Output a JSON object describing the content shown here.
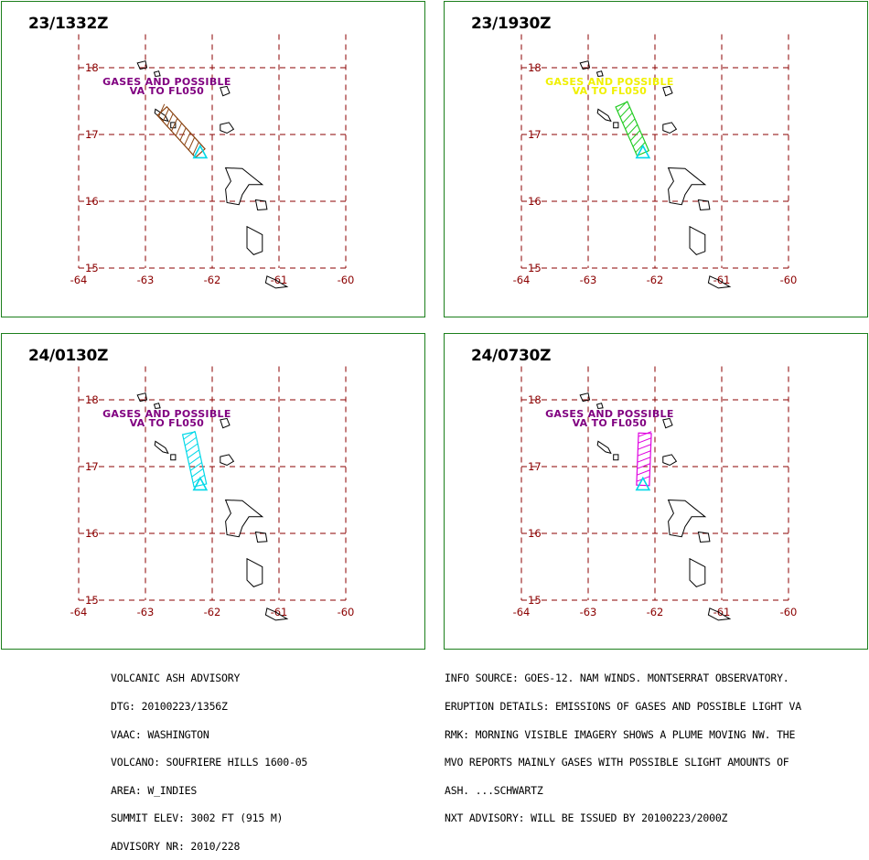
{
  "colors": {
    "grid": "#8b0000",
    "frame": "#1c7f1c",
    "coast": "#000000",
    "vent_marker": "#00d8e8"
  },
  "axes": {
    "lon_ticks": [
      "-64",
      "-63",
      "-62",
      "-61",
      "-60"
    ],
    "lat_ticks": [
      "18",
      "17",
      "16",
      "15"
    ],
    "lon_range": [
      -64,
      -60
    ],
    "lat_range": [
      15,
      18.5
    ]
  },
  "panels": [
    {
      "time": "23/1332Z",
      "annotation_line1": "GASES AND POSSIBLE",
      "annotation_line2": "VA TO FL050",
      "annotation_color": "#800080",
      "plume_color": "#8b4513",
      "plume_end": {
        "lon": -62.75,
        "lat": 17.35
      }
    },
    {
      "time": "23/1930Z",
      "annotation_line1": "GASES AND POSSIBLE",
      "annotation_line2": "VA TO FL050",
      "annotation_color": "#f0f000",
      "plume_color": "#22cc22",
      "plume_end": {
        "lon": -62.5,
        "lat": 17.45
      }
    },
    {
      "time": "24/0130Z",
      "annotation_line1": "GASES AND POSSIBLE",
      "annotation_line2": "VA TO FL050",
      "annotation_color": "#800080",
      "plume_color": "#00d8e8",
      "plume_end": {
        "lon": -62.35,
        "lat": 17.5
      }
    },
    {
      "time": "24/0730Z",
      "annotation_line1": "GASES AND POSSIBLE",
      "annotation_line2": "VA TO FL050",
      "annotation_color": "#800080",
      "plume_color": "#e000e0",
      "plume_end": {
        "lon": -62.15,
        "lat": 17.5
      }
    }
  ],
  "vent": {
    "lon": -62.18,
    "lat": 16.72
  },
  "advisory_left": [
    "VOLCANIC ASH ADVISORY",
    "DTG: 20100223/1356Z",
    "VAAC: WASHINGTON",
    "VOLCANO: SOUFRIERE HILLS 1600-05",
    "AREA: W_INDIES",
    "SUMMIT ELEV: 3002 FT (915 M)",
    "ADVISORY NR: 2010/228"
  ],
  "advisory_right": [
    "INFO SOURCE: GOES-12. NAM WINDS. MONTSERRAT OBSERVATORY.",
    "ERUPTION DETAILS: EMISSIONS OF GASES AND POSSIBLE LIGHT VA",
    "RMK: MORNING VISIBLE IMAGERY SHOWS A PLUME MOVING NW. THE",
    "MVO REPORTS MAINLY GASES WITH POSSIBLE SLIGHT AMOUNTS OF",
    "ASH. ...SCHWARTZ",
    "NXT ADVISORY: WILL BE ISSUED BY 20100223/2000Z"
  ]
}
